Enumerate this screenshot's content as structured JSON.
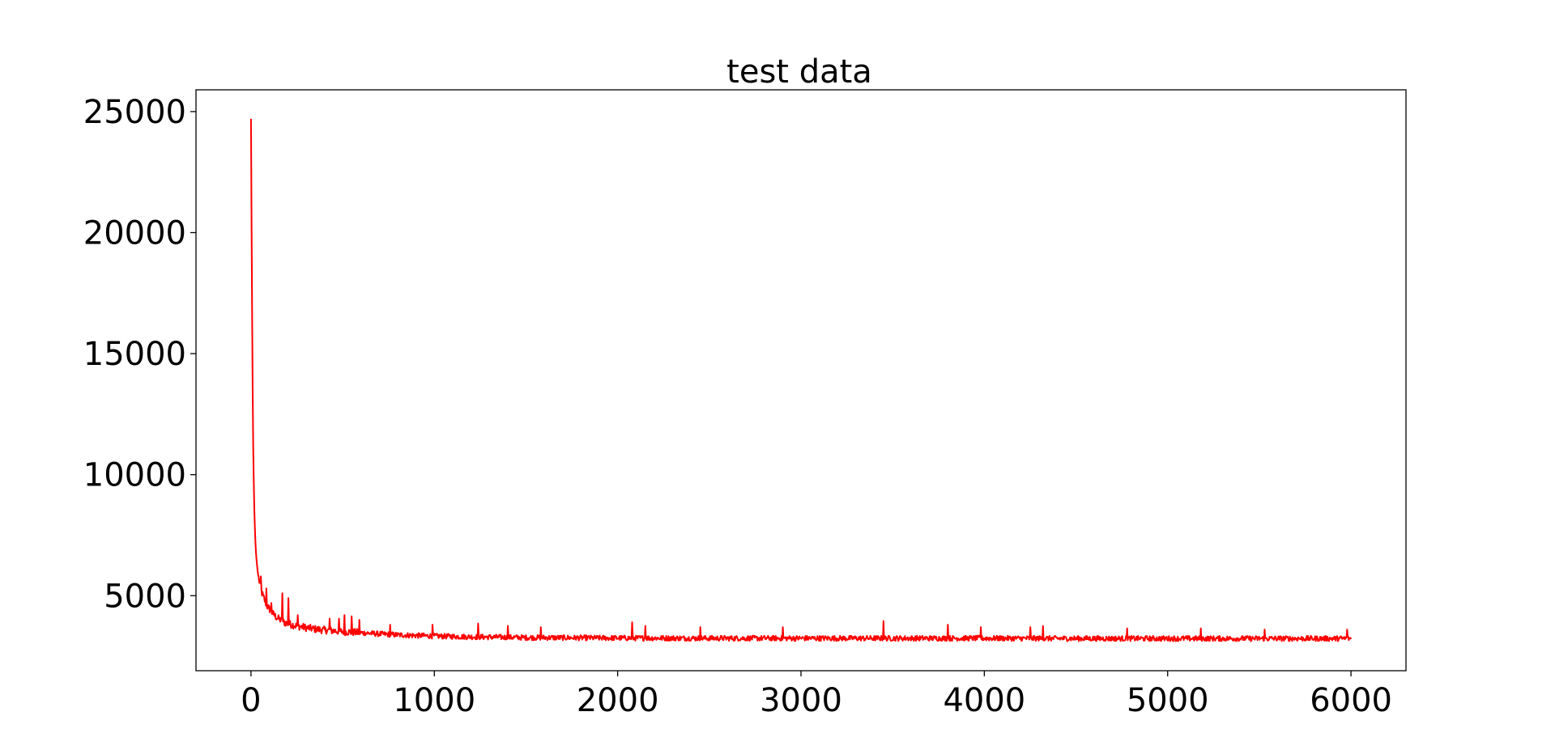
{
  "chart_data": {
    "type": "line",
    "title": "test data",
    "xlabel": "",
    "ylabel": "",
    "xlim": [
      -300,
      6300
    ],
    "ylim": [
      1900,
      25900
    ],
    "xticks": [
      0,
      1000,
      2000,
      3000,
      4000,
      5000,
      6000
    ],
    "yticks": [
      5000,
      10000,
      15000,
      20000,
      25000
    ],
    "grid": false,
    "legend": "none",
    "line_color": "#ff0000",
    "series": [
      {
        "points": [
          [
            0,
            24700
          ],
          [
            2,
            22800
          ],
          [
            4,
            18200
          ],
          [
            6,
            16800
          ],
          [
            8,
            14200
          ],
          [
            10,
            13000
          ],
          [
            12,
            11200
          ],
          [
            15,
            9800
          ],
          [
            18,
            8600
          ],
          [
            22,
            7600
          ],
          [
            26,
            6900
          ],
          [
            30,
            6500
          ],
          [
            35,
            6100
          ],
          [
            40,
            5800
          ],
          [
            50,
            5400
          ],
          [
            60,
            5100
          ],
          [
            70,
            4900
          ],
          [
            80,
            4700
          ],
          [
            90,
            4550
          ],
          [
            100,
            4450
          ],
          [
            120,
            4250
          ],
          [
            140,
            4100
          ],
          [
            160,
            4000
          ],
          [
            180,
            3900
          ],
          [
            200,
            3850
          ],
          [
            250,
            3750
          ],
          [
            300,
            3680
          ],
          [
            350,
            3620
          ],
          [
            400,
            3580
          ],
          [
            500,
            3520
          ],
          [
            600,
            3470
          ],
          [
            700,
            3420
          ],
          [
            800,
            3380
          ],
          [
            1000,
            3330
          ],
          [
            1200,
            3300
          ],
          [
            1500,
            3270
          ],
          [
            2000,
            3250
          ],
          [
            2500,
            3240
          ],
          [
            3000,
            3240
          ],
          [
            3500,
            3240
          ],
          [
            4000,
            3240
          ],
          [
            4500,
            3230
          ],
          [
            5000,
            3230
          ],
          [
            5500,
            3230
          ],
          [
            6000,
            3230
          ]
        ],
        "noise_amplitude": 110,
        "spikes": [
          [
            55,
            5800
          ],
          [
            85,
            5300
          ],
          [
            110,
            4700
          ],
          [
            170,
            5100
          ],
          [
            205,
            4900
          ],
          [
            255,
            4200
          ],
          [
            430,
            4050
          ],
          [
            480,
            4050
          ],
          [
            510,
            4200
          ],
          [
            550,
            4150
          ],
          [
            590,
            4000
          ],
          [
            760,
            3800
          ],
          [
            990,
            3800
          ],
          [
            1240,
            3850
          ],
          [
            1400,
            3750
          ],
          [
            1580,
            3700
          ],
          [
            2080,
            3900
          ],
          [
            2150,
            3750
          ],
          [
            2450,
            3700
          ],
          [
            2900,
            3700
          ],
          [
            3450,
            3950
          ],
          [
            3800,
            3800
          ],
          [
            3980,
            3700
          ],
          [
            4250,
            3700
          ],
          [
            4320,
            3750
          ],
          [
            4780,
            3650
          ],
          [
            5180,
            3650
          ],
          [
            5530,
            3600
          ],
          [
            5980,
            3600
          ]
        ]
      }
    ]
  }
}
